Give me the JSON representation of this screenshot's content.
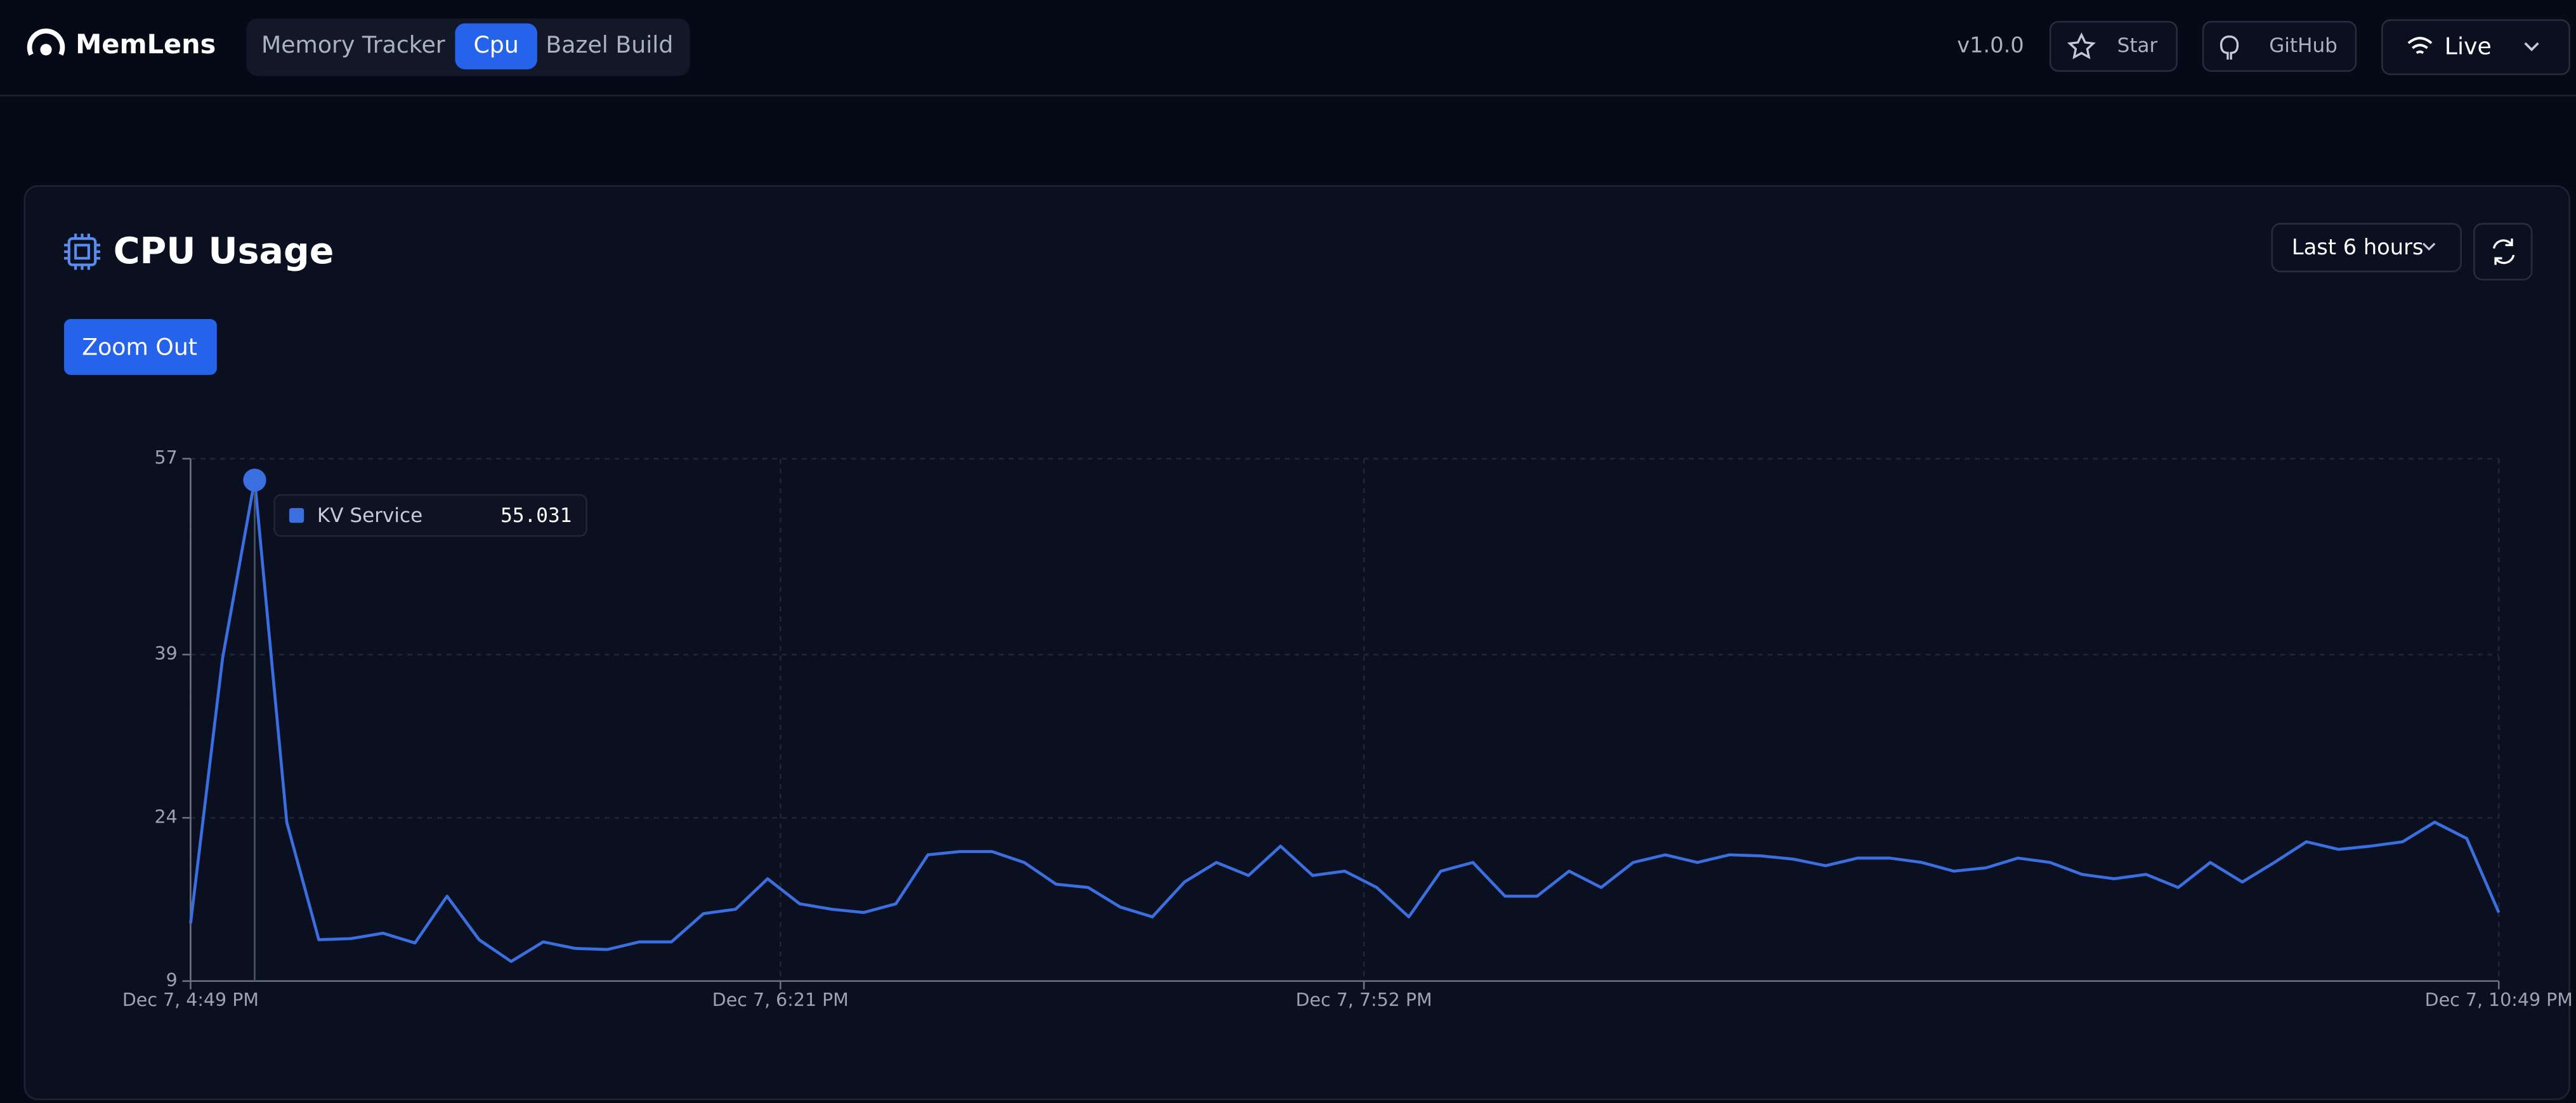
{
  "header": {
    "logo": "MemLens",
    "tabs": [
      "Memory Tracker",
      "Cpu",
      "Bazel Build"
    ],
    "version": "v1.0.0",
    "star": "Star",
    "github": "GitHub",
    "live": "Live"
  },
  "panel": {
    "title": "CPU Usage",
    "range": "Last 6 hours",
    "zoom": "Zoom Out"
  },
  "chart_data": {
    "type": "line",
    "x": [
      "Dec 7, 4:49 PM",
      "Dec 7, 4:54 PM",
      "Dec 7, 4:59 PM",
      "Dec 7, 5:04 PM",
      "Dec 7, 5:09 PM",
      "Dec 7, 5:14 PM",
      "Dec 7, 5:19 PM",
      "Dec 7, 5:24 PM",
      "Dec 7, 5:29 PM",
      "Dec 7, 5:34 PM",
      "Dec 7, 5:39 PM",
      "Dec 7, 5:44 PM",
      "Dec 7, 5:49 PM",
      "Dec 7, 5:54 PM",
      "Dec 7, 5:59 PM",
      "Dec 7, 6:04 PM",
      "Dec 7, 6:09 PM",
      "Dec 7, 6:14 PM",
      "Dec 7, 6:19 PM",
      "Dec 7, 6:24 PM",
      "Dec 7, 6:29 PM",
      "Dec 7, 6:34 PM",
      "Dec 7, 6:39 PM",
      "Dec 7, 6:44 PM",
      "Dec 7, 6:49 PM",
      "Dec 7, 6:54 PM",
      "Dec 7, 6:59 PM",
      "Dec 7, 7:04 PM",
      "Dec 7, 7:09 PM",
      "Dec 7, 7:14 PM",
      "Dec 7, 7:19 PM",
      "Dec 7, 7:24 PM",
      "Dec 7, 7:29 PM",
      "Dec 7, 7:34 PM",
      "Dec 7, 7:39 PM",
      "Dec 7, 7:44 PM",
      "Dec 7, 7:49 PM",
      "Dec 7, 7:54 PM",
      "Dec 7, 7:59 PM",
      "Dec 7, 8:04 PM",
      "Dec 7, 8:09 PM",
      "Dec 7, 8:14 PM",
      "Dec 7, 8:19 PM",
      "Dec 7, 8:24 PM",
      "Dec 7, 8:29 PM",
      "Dec 7, 8:34 PM",
      "Dec 7, 8:39 PM",
      "Dec 7, 8:44 PM",
      "Dec 7, 8:49 PM",
      "Dec 7, 8:54 PM",
      "Dec 7, 8:59 PM",
      "Dec 7, 9:04 PM",
      "Dec 7, 9:09 PM",
      "Dec 7, 9:14 PM",
      "Dec 7, 9:19 PM",
      "Dec 7, 9:24 PM",
      "Dec 7, 9:29 PM",
      "Dec 7, 9:34 PM",
      "Dec 7, 9:39 PM",
      "Dec 7, 9:44 PM",
      "Dec 7, 9:49 PM",
      "Dec 7, 9:54 PM",
      "Dec 7, 9:59 PM",
      "Dec 7, 10:04 PM",
      "Dec 7, 10:09 PM",
      "Dec 7, 10:14 PM",
      "Dec 7, 10:19 PM",
      "Dec 7, 10:24 PM",
      "Dec 7, 10:29 PM",
      "Dec 7, 10:34 PM",
      "Dec 7, 10:39 PM",
      "Dec 7, 10:44 PM",
      "Dec 7, 10:49 PM"
    ],
    "series": [
      {
        "name": "KV Service",
        "color": "#3b6fe0",
        "values": [
          14.3,
          38.7,
          55.031,
          23.6,
          12.8,
          12.9,
          13.4,
          12.5,
          16.8,
          12.8,
          10.8,
          12.6,
          12.0,
          11.9,
          12.6,
          12.6,
          15.2,
          15.6,
          18.4,
          16.1,
          15.6,
          15.3,
          16.1,
          20.6,
          20.9,
          20.9,
          19.9,
          17.9,
          17.6,
          15.8,
          14.9,
          18.1,
          19.9,
          18.7,
          21.4,
          18.7,
          19.1,
          17.6,
          14.9,
          19.1,
          19.9,
          16.8,
          16.8,
          19.1,
          17.6,
          19.9,
          20.6,
          19.9,
          20.6,
          20.5,
          20.2,
          19.6,
          20.3,
          20.3,
          19.9,
          19.1,
          19.4,
          20.3,
          19.9,
          18.8,
          18.4,
          18.8,
          17.6,
          19.9,
          18.1,
          19.9,
          21.8,
          21.1,
          21.4,
          21.8,
          23.6,
          22.1,
          15.3
        ]
      }
    ],
    "xlim": [
      "Dec 7, 4:49 PM",
      "Dec 7, 10:49 PM"
    ],
    "xticks": [
      "Dec 7, 4:49 PM",
      "Dec 7, 6:21 PM",
      "Dec 7, 7:52 PM",
      "Dec 7, 10:49 PM"
    ],
    "ylim": [
      9,
      57
    ],
    "yticks": [
      9,
      24,
      39,
      57
    ],
    "grid": true
  }
}
